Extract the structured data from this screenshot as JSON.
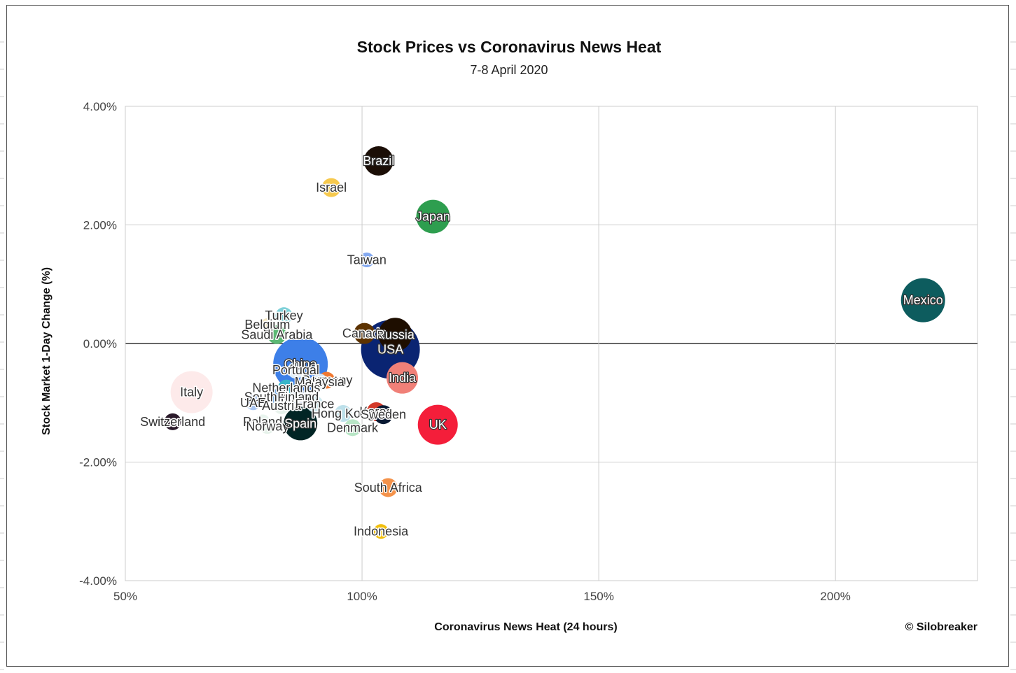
{
  "chart_data": {
    "type": "bubble",
    "title": "Stock Prices vs Coronavirus News Heat",
    "subtitle": "7-8 April 2020",
    "xlabel": "Coronavirus News Heat (24 hours)",
    "ylabel": "Stock Market 1-Day Change (%)",
    "credit": "© Silobreaker",
    "xlim": [
      50,
      230
    ],
    "ylim": [
      -4,
      4
    ],
    "x_ticks": [
      {
        "value": 50,
        "label": "50%"
      },
      {
        "value": 100,
        "label": "100%"
      },
      {
        "value": 150,
        "label": "150%"
      },
      {
        "value": 200,
        "label": "200%"
      }
    ],
    "y_ticks": [
      {
        "value": 4,
        "label": "4.00%"
      },
      {
        "value": 2,
        "label": "2.00%"
      },
      {
        "value": 0,
        "label": "0.00%"
      },
      {
        "value": -2,
        "label": "-2.00%"
      },
      {
        "value": -4,
        "label": "-4.00%"
      }
    ],
    "grid": true,
    "zero_line": true,
    "points": [
      {
        "name": "Brazil",
        "x": 103.5,
        "y": 3.08,
        "size": 14,
        "color": "#1b0e06",
        "label": "Brazil"
      },
      {
        "name": "Israel",
        "x": 93.5,
        "y": 2.63,
        "size": 9,
        "color": "#f6c94e",
        "label": "Israel"
      },
      {
        "name": "Japan",
        "x": 115,
        "y": 2.14,
        "size": 16,
        "color": "#2e9e4f",
        "label": "Japan"
      },
      {
        "name": "Taiwan",
        "x": 101,
        "y": 1.41,
        "size": 7,
        "color": "#84a9f0",
        "label": "Taiwan"
      },
      {
        "name": "Mexico",
        "x": 218.5,
        "y": 0.73,
        "size": 21,
        "color": "#0d5c5e",
        "label": "Mexico"
      },
      {
        "name": "Turkey",
        "x": 83.5,
        "y": 0.47,
        "size": 8,
        "color": "#7fd1d9",
        "label": "Turkey"
      },
      {
        "name": "Belgium",
        "x": 80,
        "y": 0.32,
        "size": 6,
        "color": "#f4e7c2",
        "label": "Belgium"
      },
      {
        "name": "Saudi Arabia",
        "x": 82,
        "y": 0.15,
        "size": 9,
        "color": "#5cb874",
        "label": "Saudi Arabia"
      },
      {
        "name": "Canada",
        "x": 100.5,
        "y": 0.17,
        "size": 10,
        "color": "#5c3200",
        "label": "Canada"
      },
      {
        "name": "Russia",
        "x": 107,
        "y": 0.15,
        "size": 16,
        "color": "#1e0e00",
        "label": "Russia"
      },
      {
        "name": "USA",
        "x": 106,
        "y": -0.1,
        "size": 28,
        "color": "#0a2472",
        "label": "USA"
      },
      {
        "name": "China",
        "x": 87,
        "y": -0.35,
        "size": 26,
        "color": "#3d7fe8",
        "label": "China"
      },
      {
        "name": "India",
        "x": 108.5,
        "y": -0.58,
        "size": 15,
        "color": "#f08078",
        "label": "India"
      },
      {
        "name": "Italy",
        "x": 64,
        "y": -0.82,
        "size": 20,
        "color": "#fdeaea",
        "label": "Italy"
      },
      {
        "name": "Portugal",
        "x": 86,
        "y": -0.45,
        "size": 8,
        "color": "#e0eef8",
        "label": "Portugal"
      },
      {
        "name": "Germany",
        "x": 92.5,
        "y": -0.62,
        "size": 8,
        "color": "#f07830",
        "label": "Germany"
      },
      {
        "name": "Malaysia",
        "x": 91,
        "y": -0.65,
        "size": 8,
        "color": "#d9e8f8",
        "label": "Malaysia"
      },
      {
        "name": "Netherlands",
        "x": 84,
        "y": -0.75,
        "size": 8,
        "color": "#38b5c9",
        "label": "Netherlands"
      },
      {
        "name": "South Korea",
        "x": 82.5,
        "y": -0.9,
        "size": 8,
        "color": "#7fb0e8",
        "label": "South Korea"
      },
      {
        "name": "Finland",
        "x": 86.5,
        "y": -0.9,
        "size": 8,
        "color": "#c7d5ee",
        "label": "Finland"
      },
      {
        "name": "UAE",
        "x": 77,
        "y": -1.0,
        "size": 7,
        "color": "#a8c4f0",
        "label": "UAE"
      },
      {
        "name": "Austria",
        "x": 83,
        "y": -1.05,
        "size": 8,
        "color": "#e8f2ec",
        "label": "Austria"
      },
      {
        "name": "France",
        "x": 90,
        "y": -1.02,
        "size": 8,
        "color": "#cfeaef",
        "label": "France"
      },
      {
        "name": "Hong Kong",
        "x": 96,
        "y": -1.18,
        "size": 8,
        "color": "#bde0ea",
        "label": "Hong Kong"
      },
      {
        "name": "Korea",
        "x": 103,
        "y": -1.15,
        "size": 9,
        "color": "#d33a2a",
        "label": "Korea"
      },
      {
        "name": "Sweden",
        "x": 104.5,
        "y": -1.2,
        "size": 9,
        "color": "#0a1a33",
        "label": "Sweden"
      },
      {
        "name": "Denmark",
        "x": 98,
        "y": -1.42,
        "size": 8,
        "color": "#b8e6c6",
        "label": "Denmark"
      },
      {
        "name": "Poland",
        "x": 79,
        "y": -1.32,
        "size": 7,
        "color": "#e8f4ee",
        "label": "Poland"
      },
      {
        "name": "Norway",
        "x": 80,
        "y": -1.4,
        "size": 7,
        "color": "#e6f2ea",
        "label": "Norway"
      },
      {
        "name": "Spain",
        "x": 87,
        "y": -1.35,
        "size": 16,
        "color": "#022525",
        "label": "Spain"
      },
      {
        "name": "UK",
        "x": 116,
        "y": -1.37,
        "size": 19,
        "color": "#f41e3a",
        "label": "UK"
      },
      {
        "name": "Switzerland",
        "x": 60,
        "y": -1.32,
        "size": 8,
        "color": "#2a1a2a",
        "label": "Switzerland"
      },
      {
        "name": "South Africa",
        "x": 105.5,
        "y": -2.43,
        "size": 9,
        "color": "#f4924a",
        "label": "South Africa"
      },
      {
        "name": "Indonesia",
        "x": 104,
        "y": -3.17,
        "size": 7,
        "color": "#f1bf0f",
        "label": "Indonesia"
      }
    ]
  }
}
